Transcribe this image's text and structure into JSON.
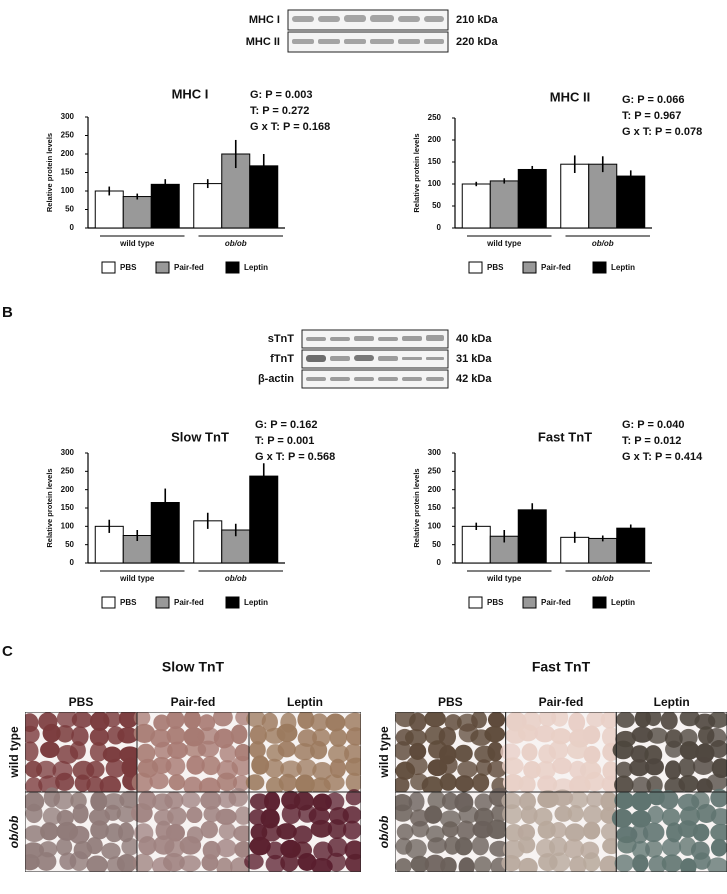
{
  "panel_labels": [
    "B",
    "C"
  ],
  "blots": [
    {
      "rows": [
        {
          "label": "MHC I",
          "size": "210 kDa"
        },
        {
          "label": "MHC II",
          "size": "220 kDa"
        }
      ]
    },
    {
      "rows": [
        {
          "label": "sTnT",
          "size": "40 kDa"
        },
        {
          "label": "fTnT",
          "size": "31 kDa"
        },
        {
          "label": "β-actin",
          "size": "42 kDa"
        }
      ]
    }
  ],
  "chart_data": [
    {
      "type": "bar",
      "title": "MHC I",
      "annotations": [
        "G: P = 0.003",
        "T: P = 0.272",
        "G x T: P = 0.168"
      ],
      "y_label": "Relative protein levels",
      "categories": [
        "wild type",
        "ob/ob"
      ],
      "series": [
        {
          "name": "PBS",
          "color": "#ffffff",
          "values": [
            100,
            120
          ],
          "errors": [
            12,
            12
          ]
        },
        {
          "name": "Pair-fed",
          "color": "#999999",
          "values": [
            85,
            200
          ],
          "errors": [
            8,
            38
          ]
        },
        {
          "name": "Leptin",
          "color": "#000000",
          "values": [
            118,
            168
          ],
          "errors": [
            14,
            32
          ]
        }
      ],
      "ylim": [
        0,
        300
      ],
      "yticks": [
        0,
        50,
        100,
        150,
        200,
        250,
        300
      ]
    },
    {
      "type": "bar",
      "title": "MHC II",
      "annotations": [
        "G: P = 0.066",
        "T: P = 0.967",
        "G x T: P = 0.078"
      ],
      "y_label": "Relative protein levels",
      "categories": [
        "wild type",
        "ob/ob"
      ],
      "series": [
        {
          "name": "PBS",
          "color": "#ffffff",
          "values": [
            100,
            145
          ],
          "errors": [
            5,
            20
          ]
        },
        {
          "name": "Pair-fed",
          "color": "#999999",
          "values": [
            107,
            145
          ],
          "errors": [
            6,
            18
          ]
        },
        {
          "name": "Leptin",
          "color": "#000000",
          "values": [
            133,
            118
          ],
          "errors": [
            8,
            13
          ]
        }
      ],
      "ylim": [
        0,
        250
      ],
      "yticks": [
        0,
        50,
        100,
        150,
        200,
        250
      ]
    },
    {
      "type": "bar",
      "title": "Slow TnT",
      "annotations": [
        "G: P = 0.162",
        "T: P = 0.001",
        "G x T: P = 0.568"
      ],
      "y_label": "Relative protein levels",
      "categories": [
        "wild type",
        "ob/ob"
      ],
      "series": [
        {
          "name": "PBS",
          "color": "#ffffff",
          "values": [
            100,
            115
          ],
          "errors": [
            18,
            22
          ]
        },
        {
          "name": "Pair-fed",
          "color": "#999999",
          "values": [
            75,
            90
          ],
          "errors": [
            15,
            17
          ]
        },
        {
          "name": "Leptin",
          "color": "#000000",
          "values": [
            165,
            237
          ],
          "errors": [
            38,
            35
          ]
        }
      ],
      "ylim": [
        0,
        300
      ],
      "yticks": [
        0,
        50,
        100,
        150,
        200,
        250,
        300
      ]
    },
    {
      "type": "bar",
      "title": "Fast TnT",
      "annotations": [
        "G: P = 0.040",
        "T: P = 0.012",
        "G x T: P = 0.414"
      ],
      "y_label": "Relative protein levels",
      "categories": [
        "wild type",
        "ob/ob"
      ],
      "series": [
        {
          "name": "PBS",
          "color": "#ffffff",
          "values": [
            100,
            70
          ],
          "errors": [
            10,
            15
          ]
        },
        {
          "name": "Pair-fed",
          "color": "#999999",
          "values": [
            73,
            67
          ],
          "errors": [
            17,
            8
          ]
        },
        {
          "name": "Leptin",
          "color": "#000000",
          "values": [
            145,
            95
          ],
          "errors": [
            18,
            10
          ]
        }
      ],
      "ylim": [
        0,
        300
      ],
      "yticks": [
        0,
        50,
        100,
        150,
        200,
        250,
        300
      ]
    }
  ],
  "histology": {
    "panels": [
      "Slow TnT",
      "Fast TnT"
    ],
    "columns": [
      "PBS",
      "Pair-fed",
      "Leptin"
    ],
    "rows": [
      "wild type",
      "ob/ob"
    ]
  }
}
